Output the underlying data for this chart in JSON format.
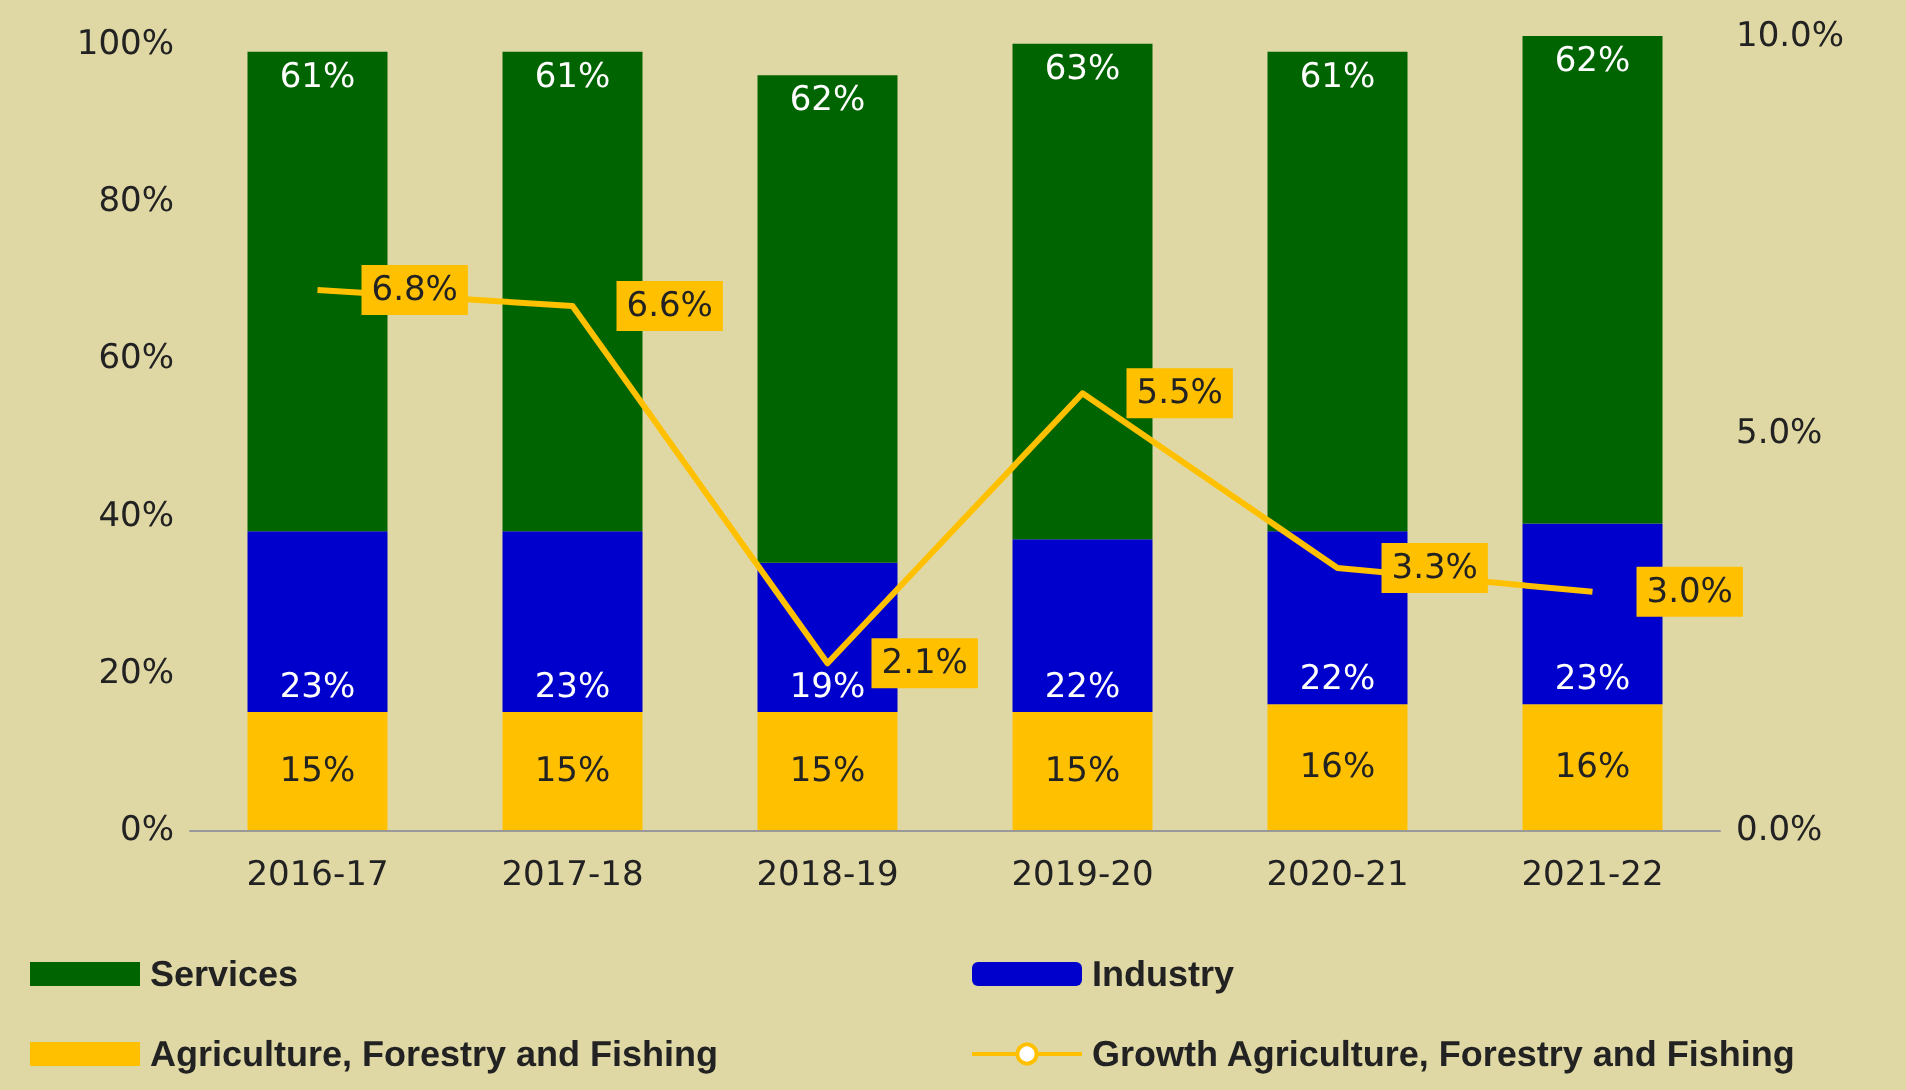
{
  "chart_data": {
    "type": "bar",
    "stacked": true,
    "legend": "bottom",
    "categories": [
      "2016-17",
      "2017-18",
      "2018-19",
      "2019-20",
      "2020-21",
      "2021-22"
    ],
    "series": [
      {
        "name": "Agriculture, Forestry and Fishing",
        "color": "#ffc000",
        "values": [
          15,
          15,
          15,
          15,
          16,
          16
        ],
        "value_labels": [
          "15%",
          "15%",
          "15%",
          "15%",
          "16%",
          "16%"
        ]
      },
      {
        "name": "Industry",
        "color": "#0000cc",
        "values": [
          23,
          23,
          19,
          22,
          22,
          23
        ],
        "value_labels": [
          "23%",
          "23%",
          "19%",
          "22%",
          "22%",
          "23%"
        ]
      },
      {
        "name": "Services",
        "color": "#006400",
        "values": [
          61,
          61,
          62,
          63,
          61,
          62
        ],
        "value_labels": [
          "61%",
          "61%",
          "62%",
          "63%",
          "61%",
          "62%"
        ]
      },
      {
        "name": "Growth Agriculture, Forestry and Fishing",
        "type": "line",
        "axis": "y2",
        "color": "#ffc000",
        "values": [
          6.8,
          6.6,
          2.1,
          5.5,
          3.3,
          3.0
        ],
        "value_labels": [
          "6.8%",
          "6.6%",
          "2.1%",
          "5.5%",
          "3.3%",
          "3.0%"
        ]
      }
    ],
    "ylim": [
      0,
      101
    ],
    "yticks": [
      {
        "value": 0,
        "label": "0%"
      },
      {
        "value": 20,
        "label": "20%"
      },
      {
        "value": 40,
        "label": "40%"
      },
      {
        "value": 60,
        "label": "60%"
      },
      {
        "value": 80,
        "label": "80%"
      },
      {
        "value": 100,
        "label": "100%"
      }
    ],
    "y2lim": [
      0,
      10
    ],
    "y2ticks": [
      {
        "value": 0,
        "label": "0.0%"
      },
      {
        "value": 5,
        "label": "5.0%"
      },
      {
        "value": 10,
        "label": "10.0%"
      }
    ]
  }
}
